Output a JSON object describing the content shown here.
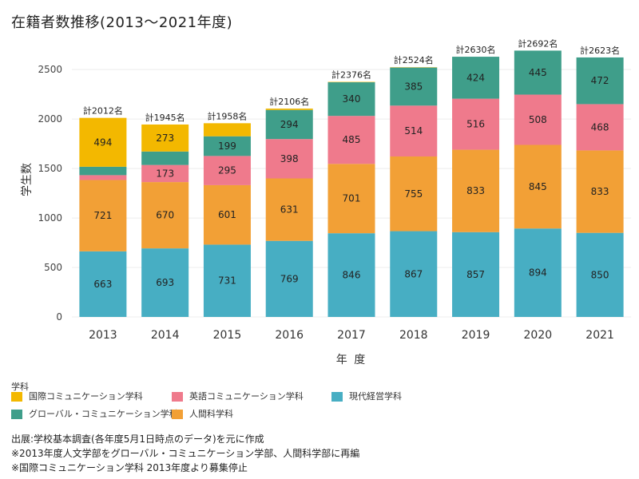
{
  "title": "在籍者数推移(2013〜2021年度)",
  "chart_data": {
    "type": "bar",
    "stacked": true,
    "categories": [
      "2013",
      "2014",
      "2015",
      "2016",
      "2017",
      "2018",
      "2019",
      "2020",
      "2021"
    ],
    "series": [
      {
        "name": "現代経営学科",
        "color": "#47aec3",
        "values": [
          663,
          693,
          731,
          769,
          846,
          867,
          857,
          894,
          850
        ]
      },
      {
        "name": "人間科学科",
        "color": "#f2a036",
        "values": [
          721,
          670,
          601,
          631,
          701,
          755,
          833,
          845,
          833
        ]
      },
      {
        "name": "英語コミュニケーション学科",
        "color": "#ef7a8c",
        "values": [
          49,
          173,
          295,
          398,
          485,
          514,
          516,
          508,
          468
        ]
      },
      {
        "name": "グローバル・コミュニケーション学科",
        "color": "#3f9e8a",
        "values": [
          85,
          136,
          199,
          294,
          340,
          385,
          424,
          445,
          472
        ]
      },
      {
        "name": "国際コミュニケーション学科",
        "color": "#f3b800",
        "values": [
          494,
          273,
          132,
          14,
          4,
          3,
          0,
          0,
          0
        ]
      }
    ],
    "value_labels": [
      [
        "663",
        "693",
        "731",
        "769",
        "846",
        "867",
        "857",
        "894",
        "850"
      ],
      [
        "721",
        "670",
        "601",
        "631",
        "701",
        "755",
        "833",
        "845",
        "833"
      ],
      [
        "",
        "173",
        "295",
        "398",
        "485",
        "514",
        "516",
        "508",
        "468"
      ],
      [
        "",
        "",
        "199",
        "294",
        "340",
        "385",
        "424",
        "445",
        "472"
      ],
      [
        "494",
        "273",
        "",
        "",
        "",
        "",
        "",
        "",
        ""
      ]
    ],
    "totals": [
      "計2012名",
      "計1945名",
      "計1958名",
      "計2106名",
      "計2376名",
      "計2524名",
      "計2630名",
      "計2692名",
      "計2623名"
    ],
    "total_values": [
      2012,
      1945,
      1958,
      2106,
      2376,
      2524,
      2630,
      2692,
      2623
    ],
    "xlabel": "年 度",
    "ylabel": "学生数",
    "ylim": [
      0,
      2800
    ],
    "yticks": [
      0,
      500,
      1000,
      1500,
      2000,
      2500
    ],
    "grid": true
  },
  "legend": {
    "title": "学科",
    "items": [
      {
        "label": "国際コミュニケーション学科",
        "color": "#f3b800"
      },
      {
        "label": "英語コミュニケーション学科",
        "color": "#ef7a8c"
      },
      {
        "label": "現代経営学科",
        "color": "#47aec3"
      },
      {
        "label": "グローバル・コミュニケーション学科",
        "color": "#3f9e8a"
      },
      {
        "label": "人間科学科",
        "color": "#f2a036"
      }
    ]
  },
  "notes": [
    "出展:学校基本調査(各年度5月1日時点のデータ)を元に作成",
    "※2013年度人文学部をグローバル・コミュニケーション学部、人間科学部に再編",
    "※国際コミュニケーション学科 2013年度より募集停止"
  ]
}
